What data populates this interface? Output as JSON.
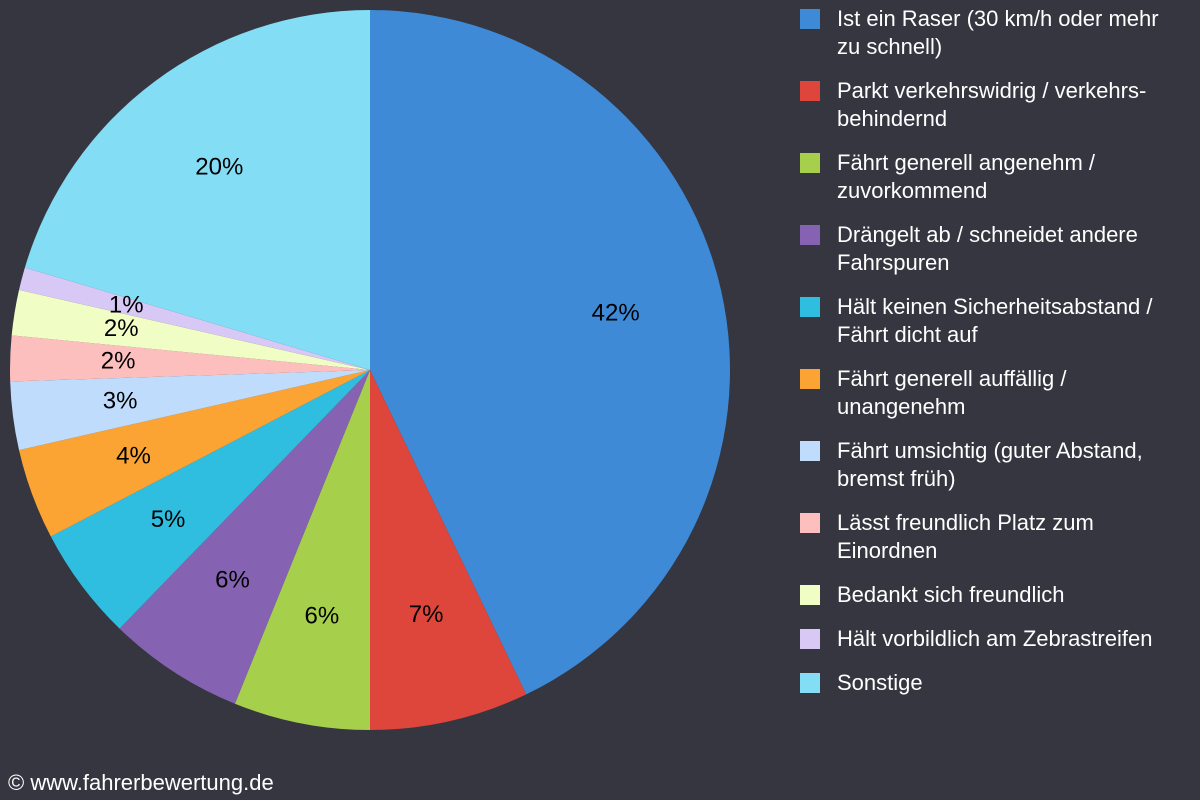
{
  "chart_data": {
    "type": "pie",
    "categories": [
      "Ist ein Raser (30 km/h oder mehr zu schnell)",
      "Parkt verkehrswidrig / verkehrs-behindernd",
      "Fährt generell angenehm / zuvorkommend",
      "Drängelt ab / schneidet andere Fahrspuren",
      "Hält keinen Sicherheitsabstand / Fährt dicht auf",
      "Fährt generell auffällig / unangenehm",
      "Fährt umsichtig (guter Abstand, bremst früh)",
      "Lässt freundlich Platz zum Einordnen",
      "Bedankt sich freundlich",
      "Hält vorbildlich am Zebrastreifen",
      "Sonstige"
    ],
    "values": [
      42,
      7,
      6,
      6,
      5,
      4,
      3,
      2,
      2,
      1,
      20
    ],
    "value_labels": [
      "42%",
      "7%",
      "6%",
      "6%",
      "5%",
      "4%",
      "3%",
      "2%",
      "2%",
      "1%",
      "20%"
    ],
    "colors": [
      "#3e8ad6",
      "#de453b",
      "#a6cf4c",
      "#8663b2",
      "#30bee0",
      "#fba434",
      "#bfdcfc",
      "#fdbfbd",
      "#f0fdc4",
      "#d8c8f5",
      "#82ddf5"
    ],
    "source": "© www.fahrerbewertung.de"
  }
}
